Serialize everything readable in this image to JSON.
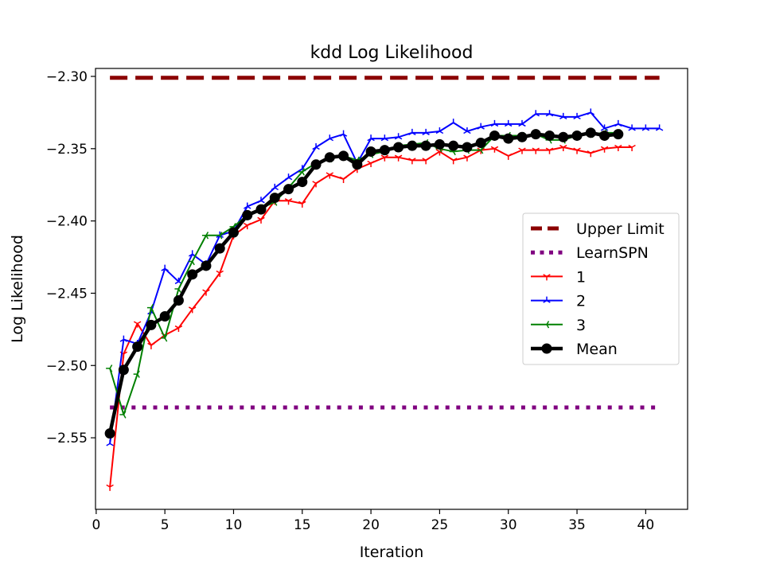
{
  "chart_data": {
    "type": "line",
    "title": "kdd Log Likelihood",
    "xlabel": "Iteration",
    "ylabel": "Log Likelihood",
    "xlim": [
      -0.05,
      43.05
    ],
    "ylim": [
      -2.5995,
      -2.2945
    ],
    "xticks": [
      0,
      5,
      10,
      15,
      20,
      25,
      30,
      35,
      40
    ],
    "yticks": [
      -2.55,
      -2.5,
      -2.45,
      -2.4,
      -2.35,
      -2.3
    ],
    "xtick_labels": [
      "0",
      "5",
      "10",
      "15",
      "20",
      "25",
      "30",
      "35",
      "40"
    ],
    "ytick_labels": [
      "−2.55",
      "−2.50",
      "−2.45",
      "−2.40",
      "−2.35",
      "−2.30"
    ],
    "legend_position": "center-right",
    "hlines": [
      {
        "name": "Upper Limit",
        "y": -2.301,
        "x": [
          1,
          41
        ],
        "color": "#8b0000",
        "style": "dashed"
      },
      {
        "name": "LearnSPN",
        "y": -2.529,
        "x": [
          1,
          41
        ],
        "color": "#800080",
        "style": "dotted"
      }
    ],
    "series": [
      {
        "name": "1",
        "color": "#ff0000",
        "marker": "tri_down",
        "x": [
          1,
          2,
          3,
          4,
          5,
          6,
          7,
          8,
          9,
          10,
          11,
          12,
          13,
          14,
          15,
          16,
          17,
          18,
          19,
          20,
          21,
          22,
          23,
          24,
          25,
          26,
          27,
          28,
          29,
          30,
          31,
          32,
          33,
          34,
          35,
          36,
          37,
          38,
          39
        ],
        "y": [
          -2.584,
          -2.492,
          -2.471,
          -2.486,
          -2.479,
          -2.474,
          -2.461,
          -2.449,
          -2.436,
          -2.41,
          -2.403,
          -2.399,
          -2.386,
          -2.386,
          -2.388,
          -2.374,
          -2.368,
          -2.371,
          -2.364,
          -2.36,
          -2.356,
          -2.356,
          -2.358,
          -2.358,
          -2.352,
          -2.358,
          -2.356,
          -2.351,
          -2.35,
          -2.355,
          -2.351,
          -2.351,
          -2.351,
          -2.349,
          -2.351,
          -2.353,
          -2.35,
          -2.349,
          -2.349
        ]
      },
      {
        "name": "2",
        "color": "#0000ff",
        "marker": "tri_up",
        "x": [
          1,
          2,
          3,
          4,
          5,
          6,
          7,
          8,
          9,
          10,
          11,
          12,
          13,
          14,
          15,
          16,
          17,
          18,
          19,
          20,
          21,
          22,
          23,
          24,
          25,
          26,
          27,
          28,
          29,
          30,
          31,
          32,
          33,
          34,
          35,
          36,
          37,
          38,
          39,
          40,
          41
        ],
        "y": [
          -2.554,
          -2.482,
          -2.485,
          -2.463,
          -2.433,
          -2.442,
          -2.423,
          -2.43,
          -2.41,
          -2.407,
          -2.39,
          -2.386,
          -2.377,
          -2.37,
          -2.364,
          -2.349,
          -2.343,
          -2.34,
          -2.36,
          -2.343,
          -2.343,
          -2.342,
          -2.339,
          -2.339,
          -2.338,
          -2.332,
          -2.338,
          -2.335,
          -2.333,
          -2.333,
          -2.333,
          -2.326,
          -2.326,
          -2.328,
          -2.328,
          -2.325,
          -2.336,
          -2.333,
          -2.336,
          -2.336,
          -2.336
        ]
      },
      {
        "name": "3",
        "color": "#008000",
        "marker": "tri_left",
        "x": [
          1,
          2,
          3,
          4,
          5,
          6,
          7,
          8,
          9,
          10,
          11,
          12,
          13,
          14,
          15,
          16,
          17,
          18,
          19,
          20,
          21,
          22,
          23,
          24,
          25,
          26,
          27,
          28,
          29,
          30,
          31,
          32,
          33,
          34,
          35,
          36,
          37,
          38
        ],
        "y": [
          -2.502,
          -2.534,
          -2.506,
          -2.46,
          -2.481,
          -2.447,
          -2.428,
          -2.41,
          -2.41,
          -2.404,
          -2.396,
          -2.391,
          -2.387,
          -2.377,
          -2.366,
          -2.36,
          -2.357,
          -2.355,
          -2.358,
          -2.354,
          -2.352,
          -2.348,
          -2.347,
          -2.346,
          -2.35,
          -2.352,
          -2.351,
          -2.351,
          -2.341,
          -2.341,
          -2.341,
          -2.34,
          -2.344,
          -2.344,
          -2.341,
          -2.34,
          -2.339,
          -2.339
        ]
      },
      {
        "name": "Mean",
        "color": "#000000",
        "marker": "circle",
        "x": [
          1,
          2,
          3,
          4,
          5,
          6,
          7,
          8,
          9,
          10,
          11,
          12,
          13,
          14,
          15,
          16,
          17,
          18,
          19,
          20,
          21,
          22,
          23,
          24,
          25,
          26,
          27,
          28,
          29,
          30,
          31,
          32,
          33,
          34,
          35,
          36,
          37,
          38
        ],
        "y": [
          -2.547,
          -2.503,
          -2.487,
          -2.472,
          -2.466,
          -2.455,
          -2.437,
          -2.431,
          -2.419,
          -2.408,
          -2.396,
          -2.392,
          -2.384,
          -2.378,
          -2.373,
          -2.361,
          -2.356,
          -2.355,
          -2.361,
          -2.352,
          -2.351,
          -2.349,
          -2.348,
          -2.348,
          -2.347,
          -2.348,
          -2.349,
          -2.346,
          -2.341,
          -2.343,
          -2.342,
          -2.34,
          -2.341,
          -2.342,
          -2.341,
          -2.339,
          -2.341,
          -2.34
        ]
      }
    ],
    "legend": [
      "Upper Limit",
      "LearnSPN",
      "1",
      "2",
      "3",
      "Mean"
    ]
  }
}
